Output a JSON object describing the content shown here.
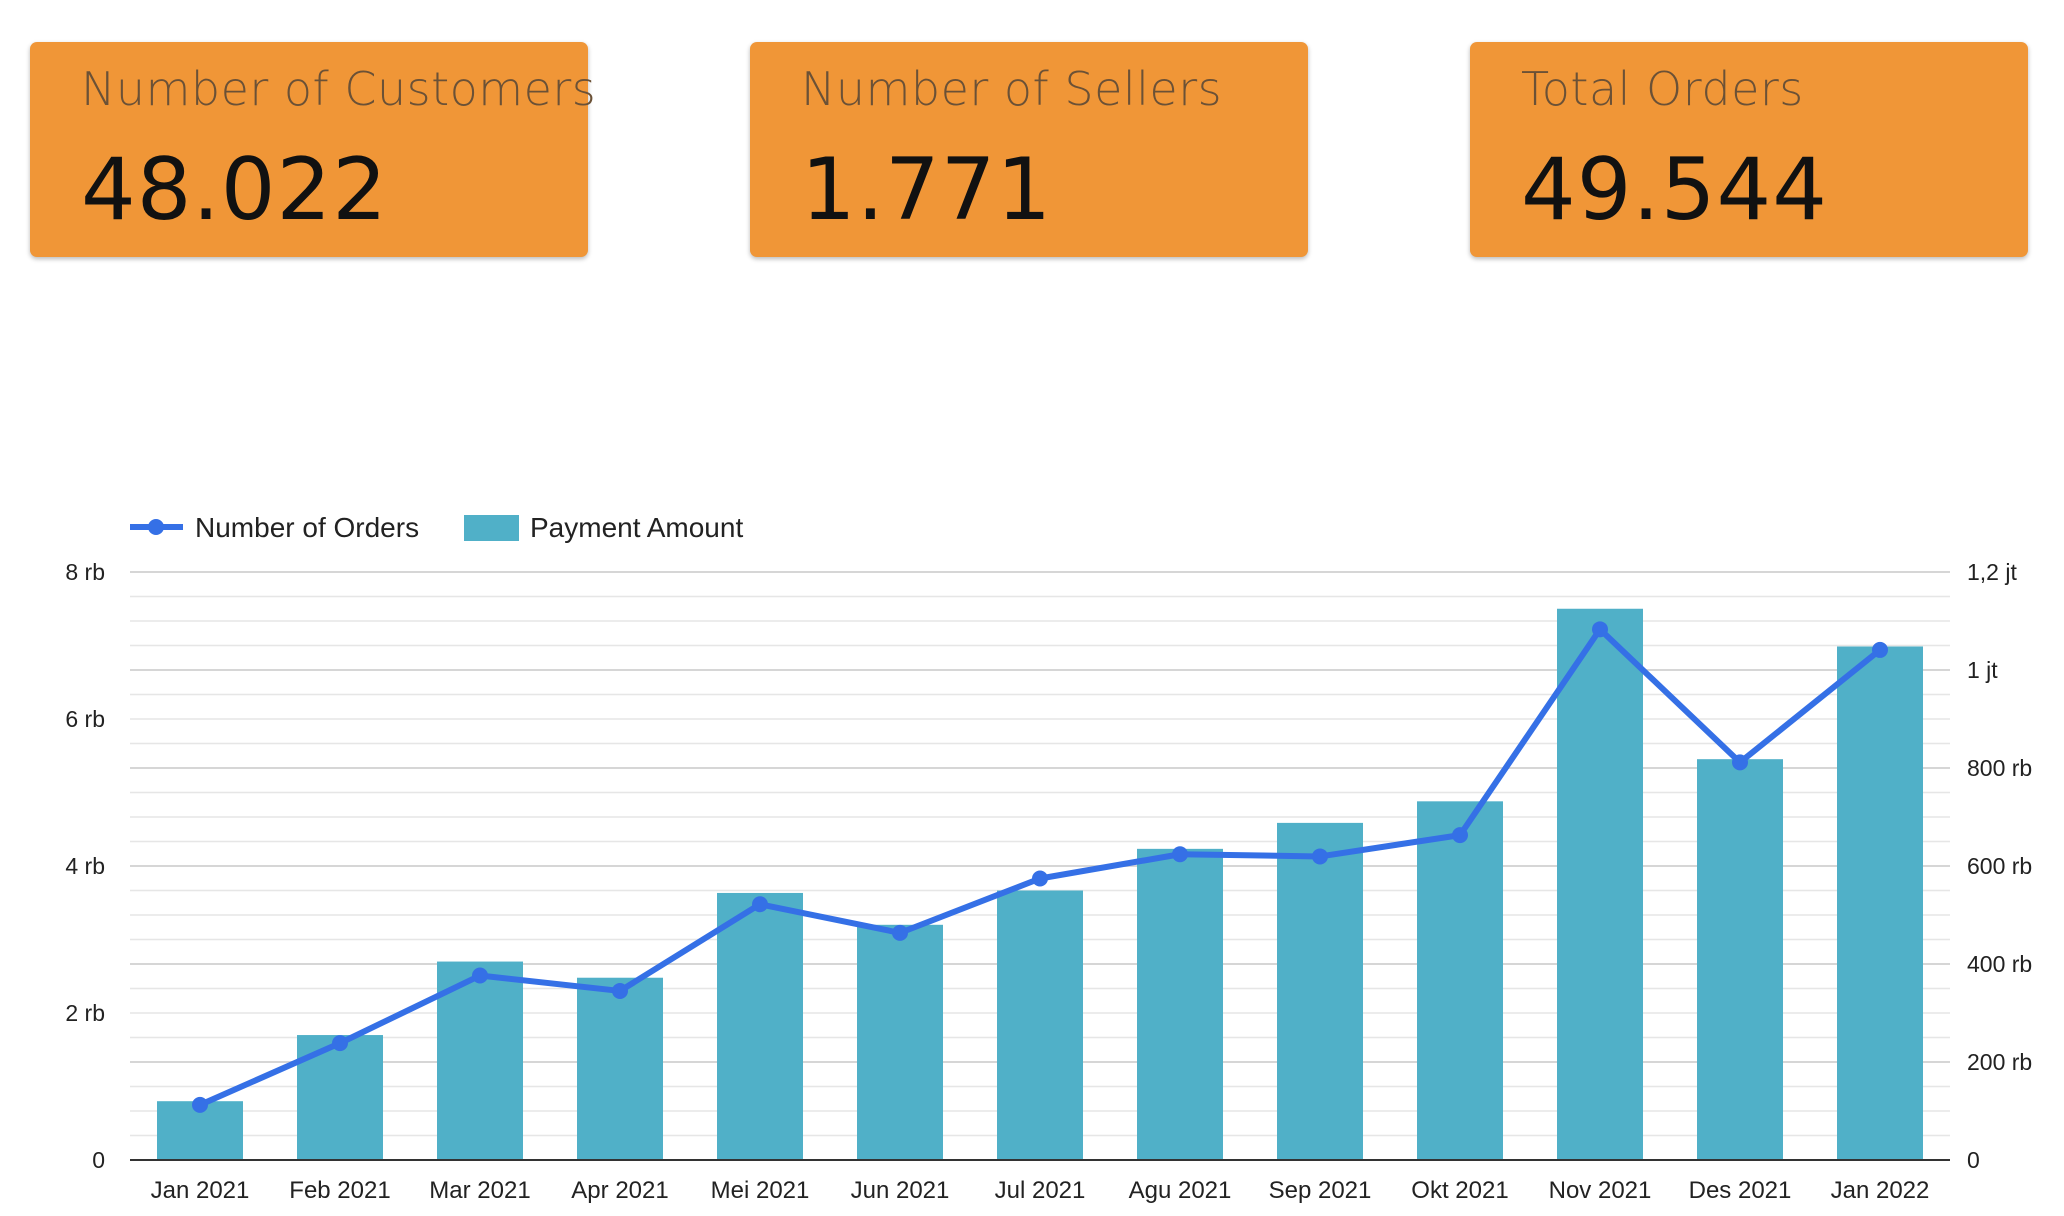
{
  "kpis": [
    {
      "title": "Number of Customers",
      "value": "48.022"
    },
    {
      "title": "Number of Sellers",
      "value": "1.771"
    },
    {
      "title": "Total Orders",
      "value": "49.544"
    }
  ],
  "colors": {
    "card_bg": "#f09637",
    "bar": "#50b0c8",
    "line": "#3570e6",
    "grid": "#dddddd"
  },
  "chart_data": {
    "type": "bar",
    "title": "",
    "categories": [
      "Jan 2021",
      "Feb 2021",
      "Mar 2021",
      "Apr 2021",
      "Mei 2021",
      "Jun 2021",
      "Jul 2021",
      "Agu 2021",
      "Sep 2021",
      "Okt 2021",
      "Nov 2021",
      "Des 2021",
      "Jan 2022"
    ],
    "series": [
      {
        "name": "Payment Amount",
        "type": "bar",
        "axis": "right",
        "values": [
          120000,
          255000,
          405000,
          372000,
          545000,
          480000,
          550000,
          635000,
          688000,
          732000,
          1125000,
          818000,
          1048000
        ]
      },
      {
        "name": "Number of Orders",
        "type": "line",
        "axis": "left",
        "values": [
          750,
          1590,
          2510,
          2300,
          3480,
          3090,
          3830,
          4160,
          4130,
          4420,
          7220,
          5410,
          6940
        ]
      }
    ],
    "y_left": {
      "min": 0,
      "max": 8000,
      "ticks": [
        {
          "v": 0,
          "label": "0"
        },
        {
          "v": 2000,
          "label": "2 rb"
        },
        {
          "v": 4000,
          "label": "4 rb"
        },
        {
          "v": 6000,
          "label": "6 rb"
        },
        {
          "v": 8000,
          "label": "8 rb"
        }
      ]
    },
    "y_right": {
      "min": 0,
      "max": 1200000,
      "ticks": [
        {
          "v": 0,
          "label": "0"
        },
        {
          "v": 200000,
          "label": "200 rb"
        },
        {
          "v": 400000,
          "label": "400 rb"
        },
        {
          "v": 600000,
          "label": "600 rb"
        },
        {
          "v": 800000,
          "label": "800 rb"
        },
        {
          "v": 1000000,
          "label": "1 jt"
        },
        {
          "v": 1200000,
          "label": "1,2 jt"
        }
      ]
    },
    "grid": true,
    "legend": "top-left"
  }
}
